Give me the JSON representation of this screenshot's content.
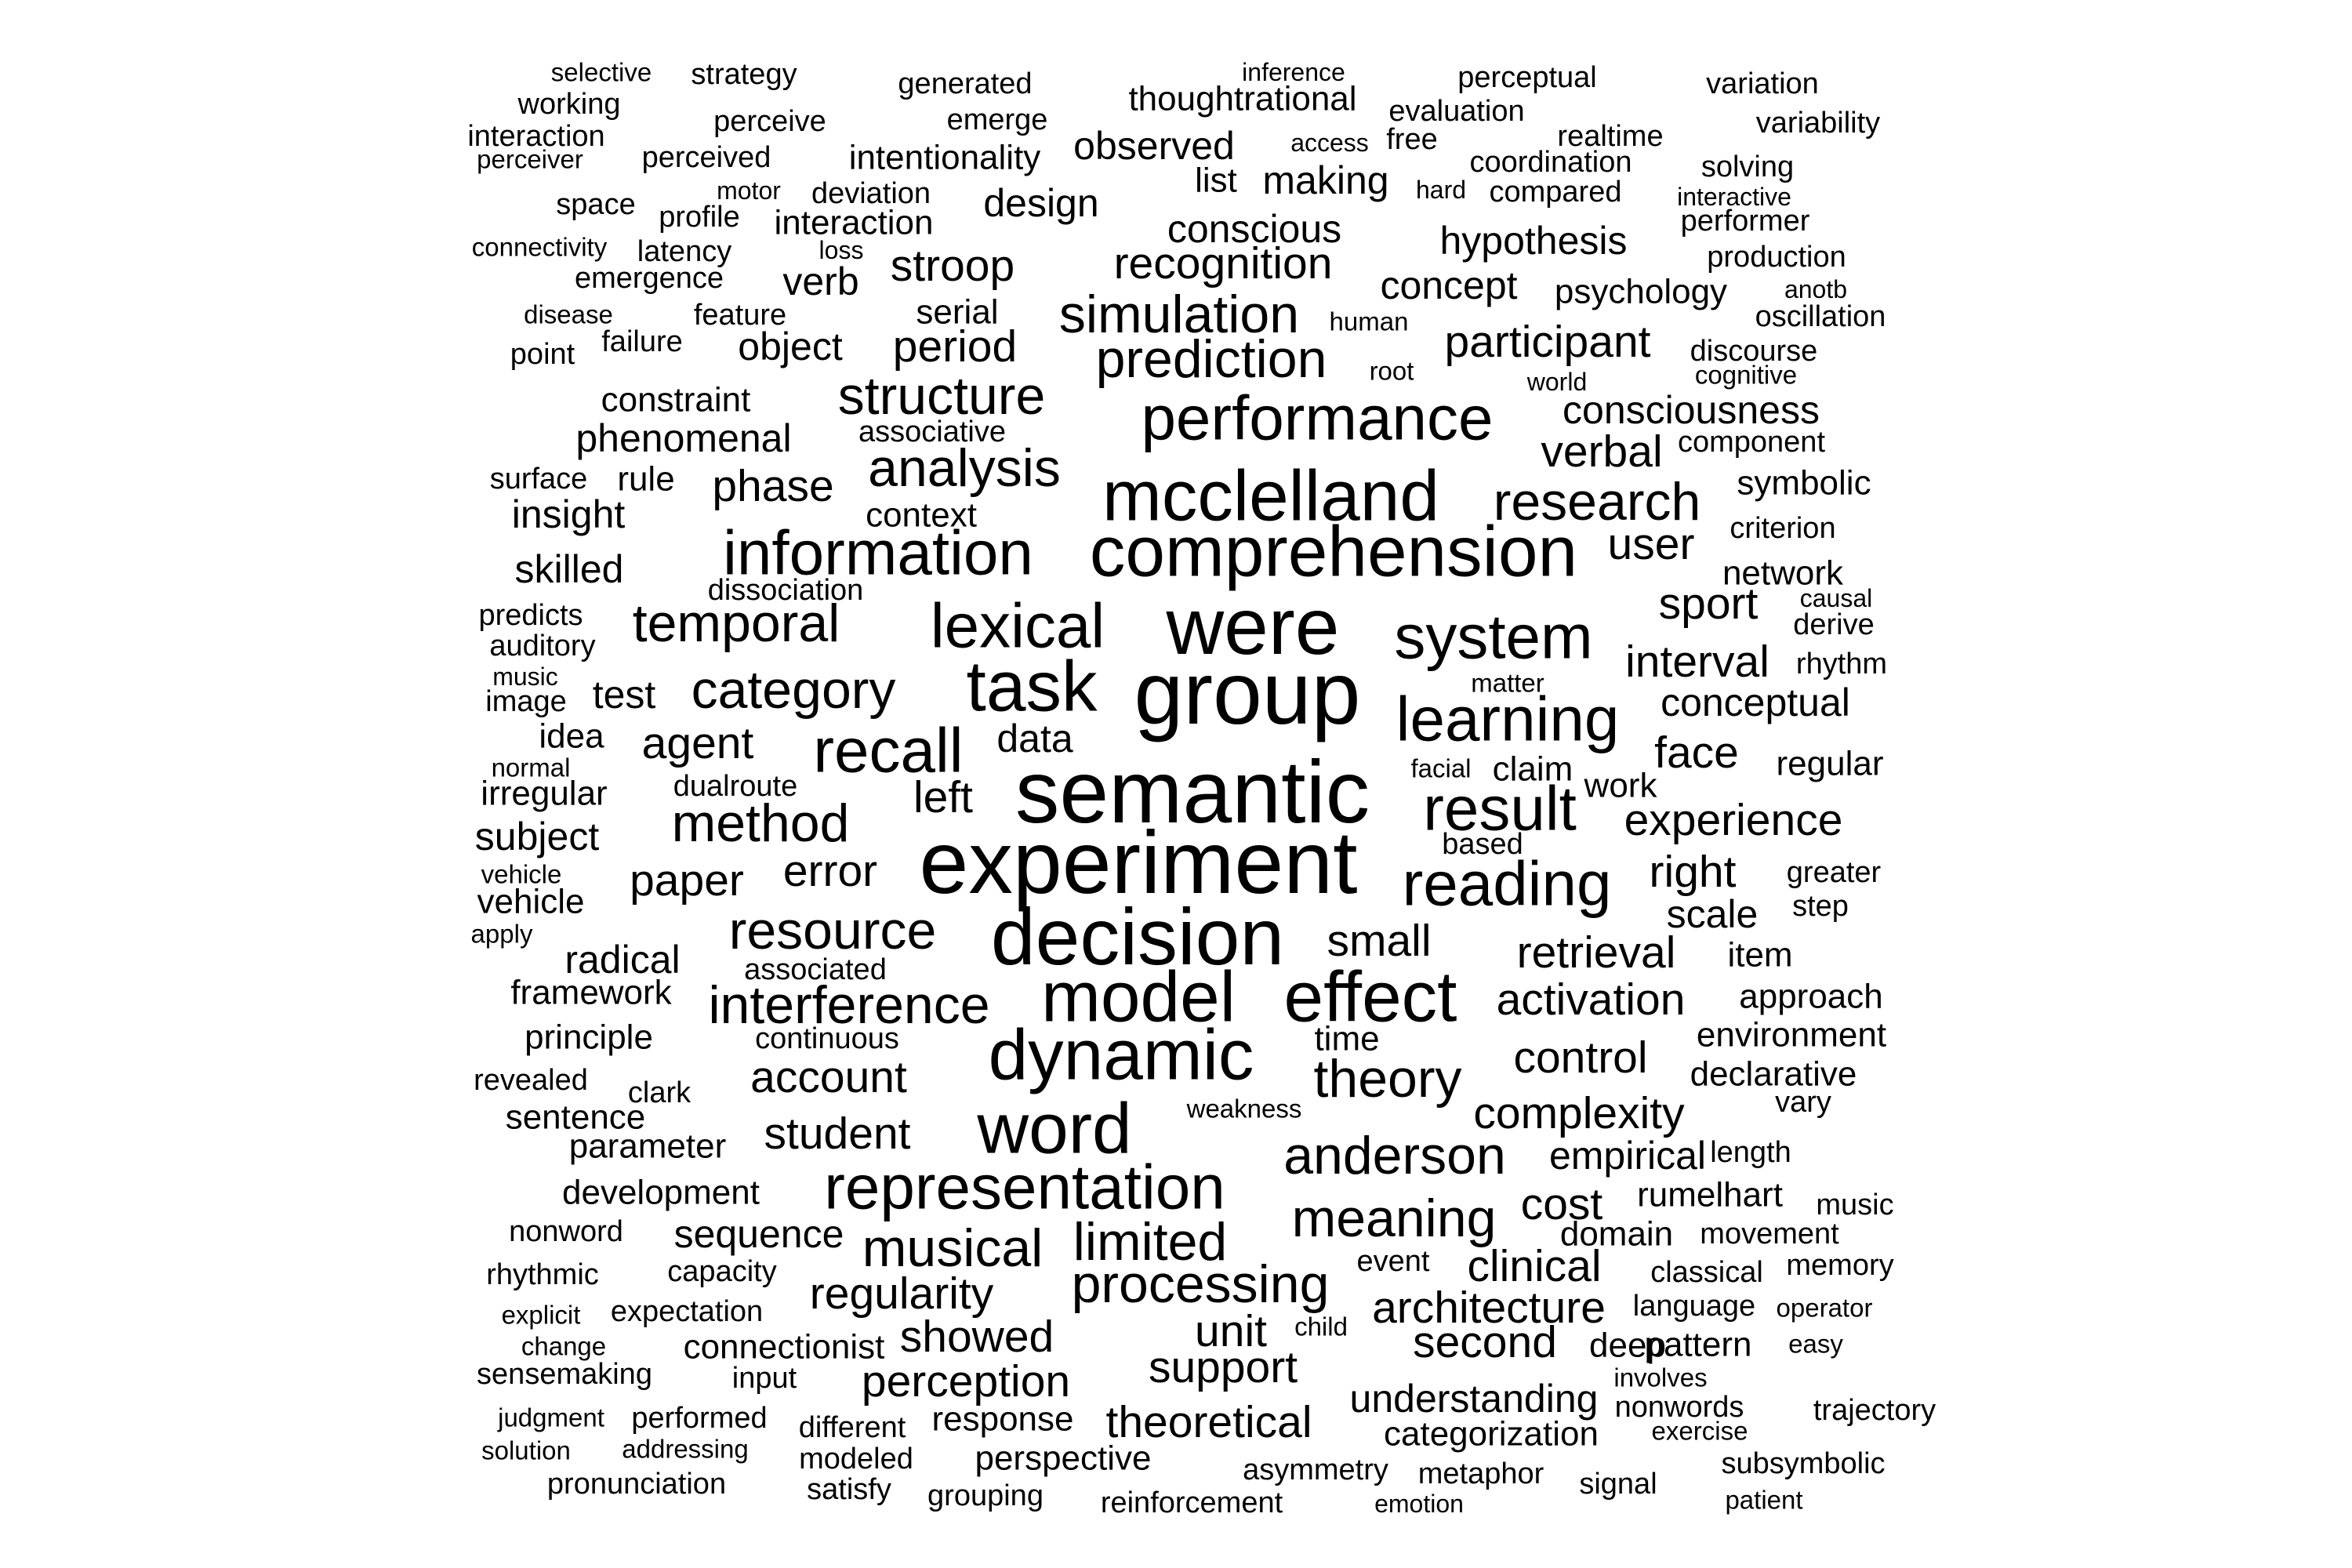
{
  "words": [
    "selective",
    "strategy",
    "generated",
    "inference",
    "perceptual",
    "variation",
    "working",
    "thoughtrational",
    "perceive",
    "emerge",
    "evaluation",
    "variability",
    "interaction",
    "realtime",
    "observed",
    "access",
    "free",
    "perceiver",
    "perceived",
    "intentionality",
    "coordination",
    "solving",
    "list",
    "making",
    "hard",
    "compared",
    "motor",
    "deviation",
    "space",
    "interactive",
    "profile",
    "design",
    "interaction",
    "conscious",
    "hypothesis",
    "performer",
    "connectivity",
    "latency",
    "loss",
    "stroop",
    "recognition",
    "production",
    "emergence",
    "verb",
    "concept",
    "psychology",
    "anotb",
    "simulation",
    "disease",
    "feature",
    "serial",
    "human",
    "oscillation",
    "failure",
    "object",
    "period",
    "participant",
    "discourse",
    "point",
    "root",
    "prediction",
    "world",
    "cognitive",
    "constraint",
    "structure",
    "consciousness",
    "performance",
    "associative",
    "phenomenal",
    "component",
    "verbal",
    "surface",
    "rule",
    "analysis",
    "phase",
    "symbolic",
    "mcclelland",
    "research",
    "insight",
    "context",
    "criterion",
    "information",
    "comprehension",
    "user",
    "skilled",
    "network",
    "dissociation",
    "causal",
    "predicts",
    "temporal",
    "lexical",
    "were",
    "sport",
    "derive",
    "auditory",
    "system",
    "interval",
    "rhythm",
    "music",
    "task",
    "group",
    "matter",
    "test",
    "image",
    "category",
    "learning",
    "conceptual",
    "idea",
    "agent",
    "data",
    "recall",
    "face",
    "claim",
    "regular",
    "normal",
    "facial",
    "irregular",
    "dualroute",
    "semantic",
    "work",
    "result",
    "left",
    "method",
    "subject",
    "experience",
    "based",
    "experiment",
    "vehicle",
    "right",
    "error",
    "greater",
    "paper",
    "reading",
    "vehicle",
    "step",
    "scale",
    "apply",
    "resource",
    "decision",
    "small",
    "item",
    "associated",
    "radical",
    "retrieval",
    "interference",
    "framework",
    "model",
    "effect",
    "activation",
    "approach",
    "principle",
    "continuous",
    "time",
    "environment",
    "dynamic",
    "control",
    "revealed",
    "account",
    "declarative",
    "clark",
    "theory",
    "weakness",
    "vary",
    "complexity",
    "word",
    "sentence",
    "student",
    "parameter",
    "anderson",
    "empirical",
    "length",
    "rumelhart",
    "representation",
    "development",
    "cost",
    "music",
    "nonword",
    "sequence",
    "meaning",
    "limited",
    "domain",
    "movement",
    "musical",
    "clinical",
    "event",
    "memory",
    "capacity",
    "classical",
    "rhythmic",
    "processing",
    "regularity",
    "language",
    "expectation",
    "operator",
    "explicit",
    "architecture",
    "child",
    "unit",
    "change",
    "pattern",
    "showed",
    "connectionist",
    "second",
    "easy",
    "deep",
    "sensemaking",
    "support",
    "perception",
    "input",
    "understanding",
    "involves",
    "judgment",
    "performed",
    "nonwords",
    "trajectory",
    "response",
    "theoretical",
    "different",
    "exercise",
    "categorization",
    "solution",
    "addressing",
    "modeled",
    "perspective",
    "subsymbolic",
    "asymmetry",
    "metaphor",
    "pronunciation",
    "signal",
    "satisfy",
    "grouping",
    "reinforcement",
    "emotion",
    "patient"
  ]
}
